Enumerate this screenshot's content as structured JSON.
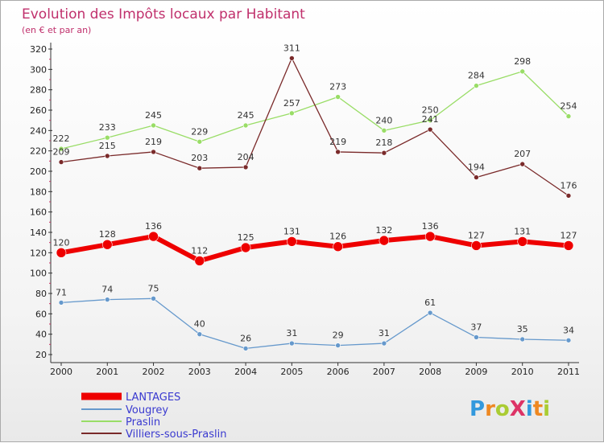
{
  "chart_data": {
    "type": "line",
    "title": "Evolution des Impôts locaux par Habitant",
    "subtitle": "(en € et par an)",
    "x": [
      "2000",
      "2001",
      "2002",
      "2003",
      "2004",
      "2005",
      "2006",
      "2007",
      "2008",
      "2009",
      "2010",
      "2011"
    ],
    "ylim": [
      20,
      320
    ],
    "yticks": [
      20,
      40,
      60,
      80,
      100,
      120,
      140,
      160,
      180,
      200,
      220,
      240,
      260,
      280,
      300,
      320
    ],
    "grid": false,
    "legend_position": "bottom-left",
    "series": [
      {
        "name": "LANTAGES",
        "color": "#ee0000",
        "values": [
          120,
          128,
          136,
          112,
          125,
          131,
          126,
          132,
          136,
          127,
          131,
          127
        ]
      },
      {
        "name": "Vougrey",
        "color": "#6699cc",
        "values": [
          71,
          74,
          75,
          40,
          26,
          31,
          29,
          31,
          61,
          37,
          35,
          34
        ]
      },
      {
        "name": "Praslin",
        "color": "#99dd66",
        "values": [
          222,
          233,
          245,
          229,
          245,
          257,
          273,
          240,
          250,
          284,
          298,
          254
        ]
      },
      {
        "name": "Villiers-sous-Praslin",
        "color": "#7a2a2a",
        "values": [
          209,
          215,
          219,
          203,
          204,
          311,
          219,
          218,
          241,
          194,
          207,
          176
        ]
      }
    ]
  },
  "logo": {
    "text": "ProXiti"
  }
}
